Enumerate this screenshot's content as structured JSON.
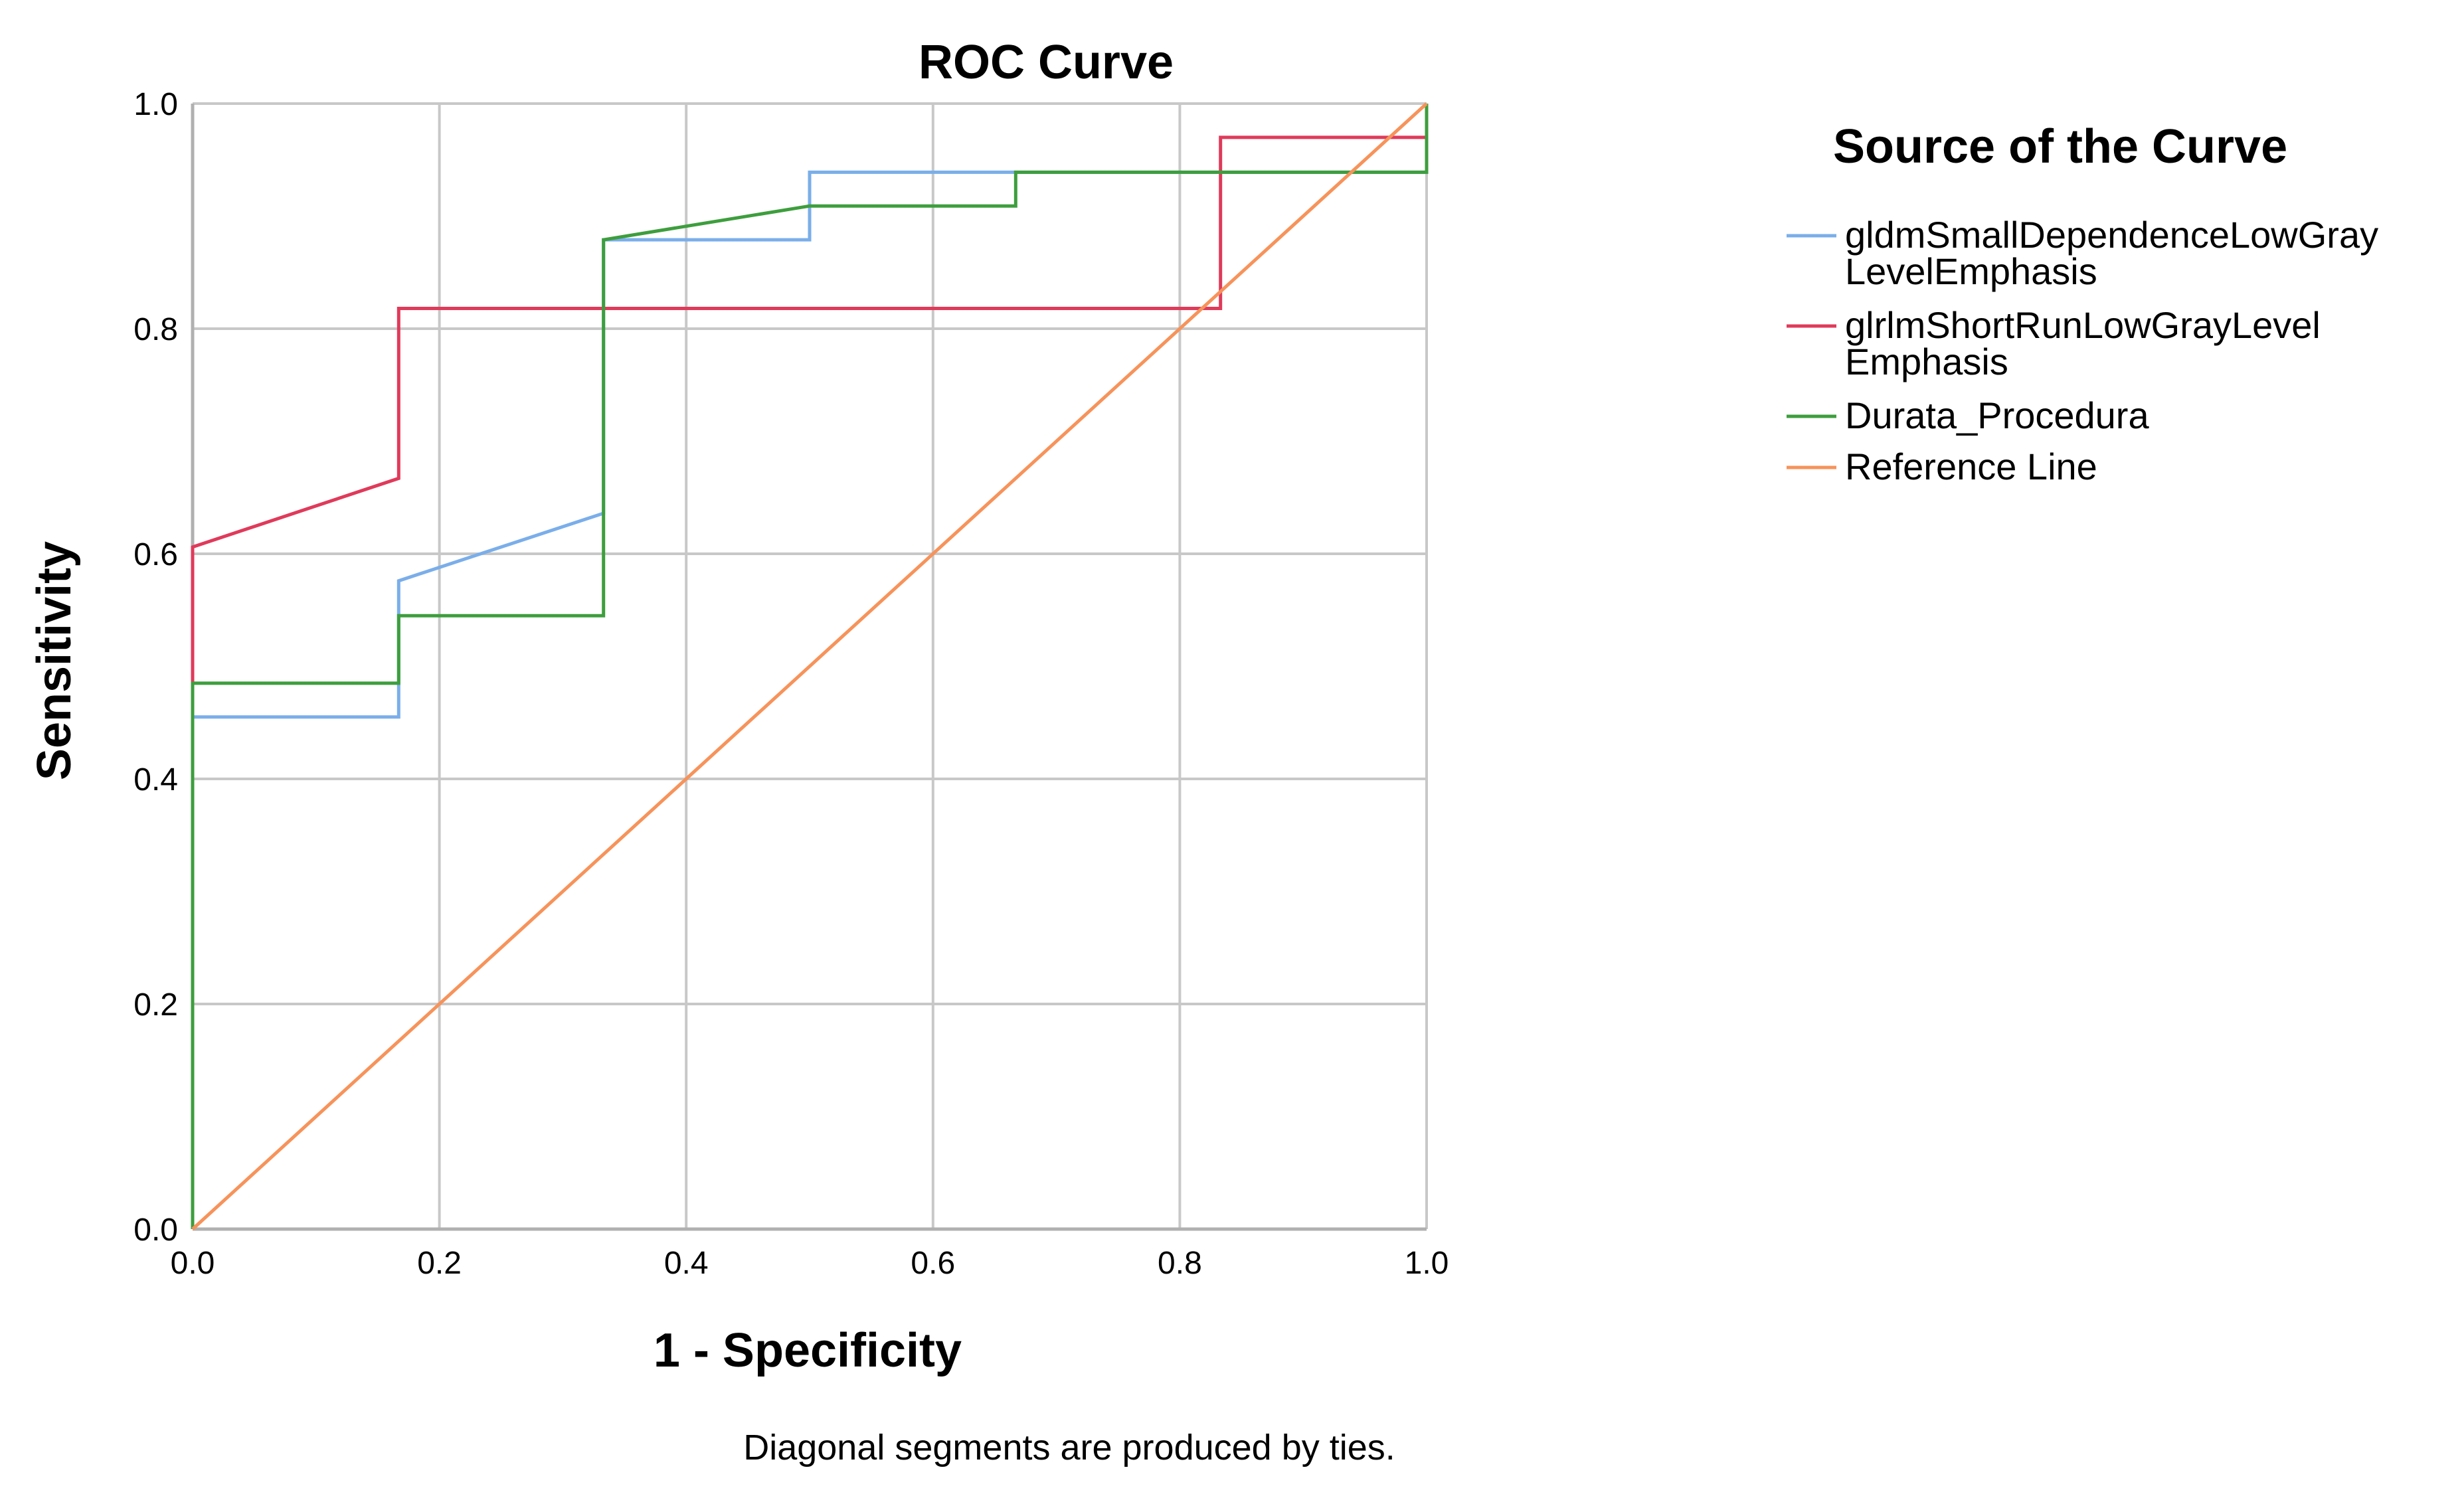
{
  "chart_data": {
    "type": "line",
    "title": "ROC Curve",
    "xlabel": "1 - Specificity",
    "ylabel": "Sensitivity",
    "xlim": [
      0,
      1
    ],
    "ylim": [
      0,
      1
    ],
    "xticks": [
      "0.0",
      "0.2",
      "0.4",
      "0.6",
      "0.8",
      "1.0"
    ],
    "yticks": [
      "0.0",
      "0.2",
      "0.4",
      "0.6",
      "0.8",
      "1.0"
    ],
    "grid": true,
    "footnote": "Diagonal segments are produced by ties.",
    "legend": {
      "title": "Source of the Curve",
      "placement": "right",
      "entries": [
        {
          "lines": [
            "gldmSmallDependenceLowGray",
            "LevelEmphasis"
          ],
          "color": "#7aaeea"
        },
        {
          "lines": [
            "glrlmShortRunLowGrayLevel",
            "Emphasis"
          ],
          "color": "#e03a5a"
        },
        {
          "lines": [
            "Durata_Procedura"
          ],
          "color": "#3d9e3d"
        },
        {
          "lines": [
            "Reference Line"
          ],
          "color": "#f7935a"
        }
      ]
    },
    "series": [
      {
        "name": "gldmSmallDependenceLowGrayLevelEmphasis",
        "color": "#7aaeea",
        "points": [
          [
            0,
            0
          ],
          [
            0,
            0.455
          ],
          [
            0.167,
            0.455
          ],
          [
            0.167,
            0.576
          ],
          [
            0.333,
            0.636
          ],
          [
            0.333,
            0.879
          ],
          [
            0.5,
            0.879
          ],
          [
            0.5,
            0.939
          ],
          [
            1,
            0.939
          ],
          [
            1,
            1
          ]
        ]
      },
      {
        "name": "glrlmShortRunLowGrayLevelEmphasis",
        "color": "#e03a5a",
        "points": [
          [
            0,
            0
          ],
          [
            0,
            0.606
          ],
          [
            0.167,
            0.667
          ],
          [
            0.167,
            0.818
          ],
          [
            0.833,
            0.818
          ],
          [
            0.833,
            0.97
          ],
          [
            1,
            0.97
          ],
          [
            1,
            1
          ]
        ]
      },
      {
        "name": "Durata_Procedura",
        "color": "#3d9e3d",
        "points": [
          [
            0,
            0
          ],
          [
            0,
            0.485
          ],
          [
            0.167,
            0.485
          ],
          [
            0.167,
            0.545
          ],
          [
            0.333,
            0.545
          ],
          [
            0.333,
            0.879
          ],
          [
            0.5,
            0.909
          ],
          [
            0.667,
            0.909
          ],
          [
            0.667,
            0.939
          ],
          [
            1,
            0.939
          ],
          [
            1,
            1
          ]
        ]
      },
      {
        "name": "Reference Line",
        "color": "#f7935a",
        "points": [
          [
            0,
            0
          ],
          [
            1,
            1
          ]
        ]
      }
    ]
  }
}
